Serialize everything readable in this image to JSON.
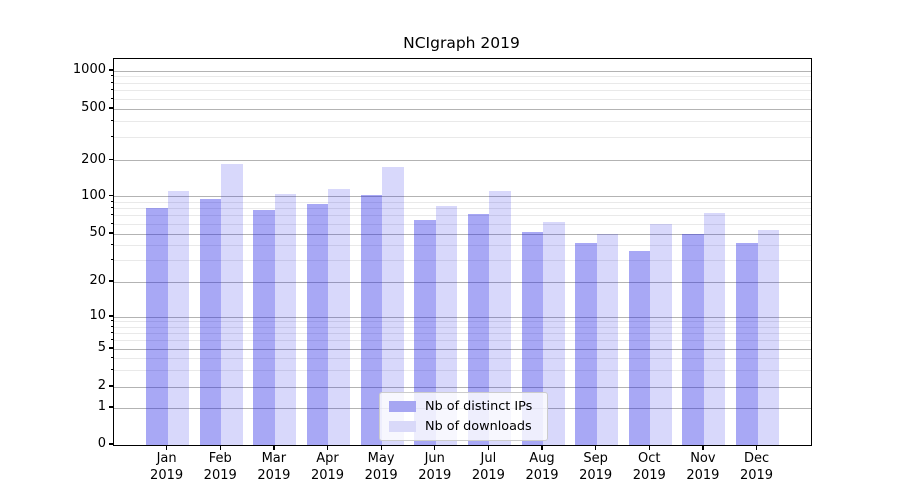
{
  "chart_data": {
    "type": "bar",
    "title": "NCIgraph 2019",
    "x_axis": {
      "categories": [
        [
          "Jan",
          "2019"
        ],
        [
          "Feb",
          "2019"
        ],
        [
          "Mar",
          "2019"
        ],
        [
          "Apr",
          "2019"
        ],
        [
          "May",
          "2019"
        ],
        [
          "Jun",
          "2019"
        ],
        [
          "Jul",
          "2019"
        ],
        [
          "Aug",
          "2019"
        ],
        [
          "Sep",
          "2019"
        ],
        [
          "Oct",
          "2019"
        ],
        [
          "Nov",
          "2019"
        ],
        [
          "Dec",
          "2019"
        ]
      ]
    },
    "y_axis": {
      "scale": "symlog",
      "ticks": [
        0,
        1,
        2,
        5,
        10,
        20,
        50,
        100,
        200,
        500,
        1000
      ],
      "minor_ticks": [
        3,
        4,
        6,
        7,
        8,
        9,
        30,
        40,
        60,
        70,
        80,
        90,
        300,
        400,
        600,
        700,
        800,
        900
      ],
      "ylim": [
        0,
        1400
      ]
    },
    "series": [
      {
        "name": "Nb of distinct IPs",
        "color": "rgba(25,25,230,0.38)",
        "legend_swatch": "#a6a6f2",
        "values": [
          81,
          96,
          78,
          87,
          103,
          65,
          73,
          52,
          42,
          36,
          50,
          42
        ]
      },
      {
        "name": "Nb of downloads",
        "color": "rgba(25,25,230,0.17)",
        "legend_swatch": "#d9d9f9",
        "values": [
          112,
          188,
          105,
          115,
          178,
          84,
          111,
          62,
          50,
          60,
          74,
          54
        ]
      }
    ],
    "grid": "on",
    "legend_position": "lower center inside plot"
  }
}
